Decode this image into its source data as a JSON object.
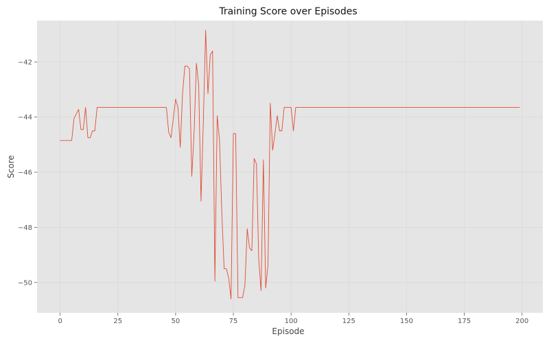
{
  "chart_data": {
    "type": "line",
    "title": "Training Score over Episodes",
    "xlabel": "Episode",
    "ylabel": "Score",
    "xlim": [
      -10,
      209
    ],
    "ylim": [
      -51.1,
      -40.5
    ],
    "xticks": [
      0,
      25,
      50,
      75,
      100,
      125,
      150,
      175,
      200
    ],
    "yticks": [
      -50,
      -48,
      -46,
      -44,
      -42
    ],
    "ytick_labels": [
      "−50",
      "−48",
      "−46",
      "−44",
      "−42"
    ],
    "grid": true,
    "background": "#e5e5e5",
    "grid_color": "#d9d9d9",
    "line_color": "#e24a33",
    "series": [
      {
        "points": [
          [
            0,
            -44.85
          ],
          [
            5,
            -44.85
          ],
          [
            6,
            -44.05
          ],
          [
            8,
            -43.72
          ],
          [
            9,
            -44.45
          ],
          [
            10,
            -44.45
          ],
          [
            11,
            -43.65
          ],
          [
            12,
            -44.75
          ],
          [
            13,
            -44.75
          ],
          [
            14,
            -44.5
          ],
          [
            15,
            -44.5
          ],
          [
            16,
            -43.65
          ],
          [
            46,
            -43.65
          ],
          [
            47,
            -44.55
          ],
          [
            48,
            -44.75
          ],
          [
            49,
            -44.05
          ],
          [
            50,
            -43.35
          ],
          [
            51,
            -43.65
          ],
          [
            52,
            -45.1
          ],
          [
            53,
            -43.15
          ],
          [
            54,
            -42.15
          ],
          [
            55,
            -42.15
          ],
          [
            56,
            -42.25
          ],
          [
            57,
            -46.15
          ],
          [
            58,
            -44.55
          ],
          [
            59,
            -42.05
          ],
          [
            60,
            -42.85
          ],
          [
            61,
            -47.05
          ],
          [
            62,
            -44.15
          ],
          [
            63,
            -40.85
          ],
          [
            64,
            -43.15
          ],
          [
            65,
            -41.75
          ],
          [
            66,
            -41.6
          ],
          [
            67,
            -49.95
          ],
          [
            68,
            -43.95
          ],
          [
            69,
            -44.85
          ],
          [
            70,
            -47.45
          ],
          [
            71,
            -49.5
          ],
          [
            72,
            -49.5
          ],
          [
            73,
            -49.85
          ],
          [
            74,
            -50.6
          ],
          [
            75,
            -44.6
          ],
          [
            76,
            -44.6
          ],
          [
            77,
            -50.55
          ],
          [
            78,
            -50.55
          ],
          [
            79,
            -50.55
          ],
          [
            80,
            -50.1
          ],
          [
            81,
            -48.05
          ],
          [
            82,
            -48.75
          ],
          [
            83,
            -48.85
          ],
          [
            84,
            -45.5
          ],
          [
            85,
            -45.7
          ],
          [
            86,
            -49.2
          ],
          [
            87,
            -50.3
          ],
          [
            88,
            -45.55
          ],
          [
            89,
            -50.2
          ],
          [
            90,
            -49.35
          ],
          [
            91,
            -43.5
          ],
          [
            92,
            -45.2
          ],
          [
            93,
            -44.6
          ],
          [
            94,
            -43.95
          ],
          [
            95,
            -44.5
          ],
          [
            96,
            -44.5
          ],
          [
            97,
            -43.65
          ],
          [
            100,
            -43.65
          ],
          [
            101,
            -44.5
          ],
          [
            102,
            -43.65
          ],
          [
            199,
            -43.65
          ]
        ]
      }
    ]
  }
}
